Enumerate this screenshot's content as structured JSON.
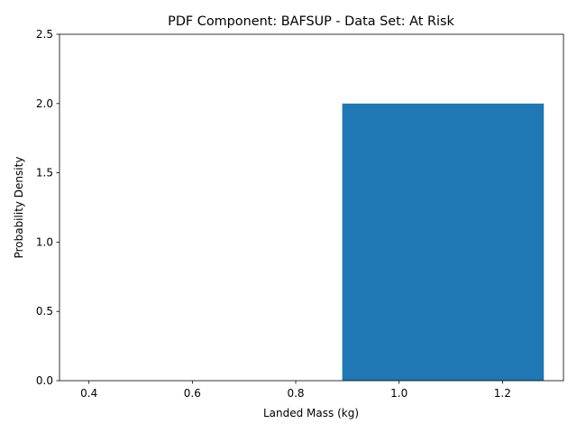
{
  "chart_data": {
    "type": "histogram",
    "title": "PDF Component: BAFSUP - Data Set: At Risk",
    "xlabel": "Landed Mass (kg)",
    "ylabel": "Probability Density",
    "bins": [
      0.39,
      0.89,
      1.28
    ],
    "values": [
      0,
      2
    ],
    "color": "#1f77b4",
    "xlim": [
      0.343,
      1.318
    ],
    "ylim": [
      0,
      2.5
    ],
    "xticks": [
      0.4,
      0.6,
      0.8,
      {
        "value": 1.0,
        "label": "1.0"
      },
      1.2
    ],
    "yticks": [
      {
        "value": 0,
        "label": "0.0"
      },
      0.5,
      {
        "value": 1,
        "label": "1.0"
      },
      1.5,
      {
        "value": 2,
        "label": "2.0"
      },
      2.5
    ]
  }
}
